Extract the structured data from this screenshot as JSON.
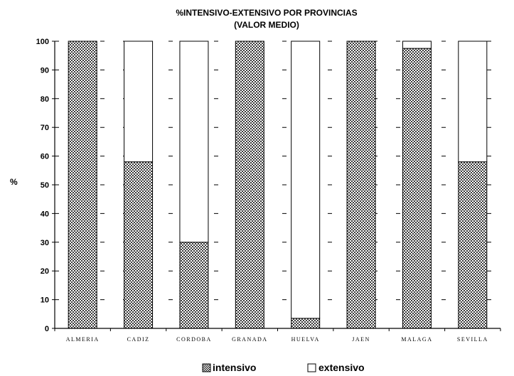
{
  "chart_data": {
    "type": "bar",
    "stacked": true,
    "title": "%INTENSIVO-EXTENSIVO POR PROVINCIAS",
    "subtitle": "(VALOR MEDIO)",
    "xlabel": "",
    "ylabel": "%",
    "ylim": [
      0,
      100
    ],
    "yticks": [
      "0",
      "10",
      "20",
      "30",
      "40",
      "50",
      "60",
      "70",
      "80",
      "90",
      "100"
    ],
    "categories": [
      "ALMERIA",
      "CADIZ",
      "CORDOBA",
      "GRANADA",
      "HUELVA",
      "JAEN",
      "MALAGA",
      "SEVILLA"
    ],
    "series": [
      {
        "name": "intensivo",
        "values": [
          100,
          58,
          30,
          100,
          3.5,
          100,
          97.5,
          58
        ],
        "pattern": "checkered"
      },
      {
        "name": "extensivo",
        "values": [
          0,
          42,
          70,
          0,
          96.5,
          0,
          2.5,
          42
        ],
        "pattern": "blank"
      }
    ],
    "grid": "dashed horizontal",
    "legend_position": "bottom",
    "colors": {
      "intensivo": "#555555",
      "extensivo": "#ffffff",
      "outline": "#000000"
    }
  }
}
